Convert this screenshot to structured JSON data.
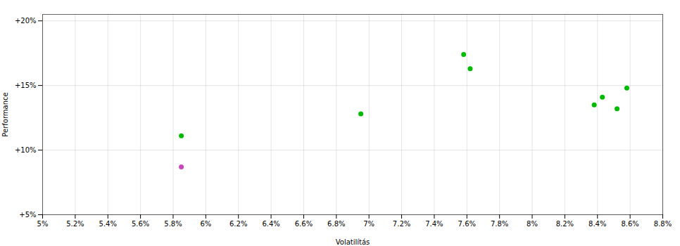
{
  "chart_data": {
    "type": "scatter",
    "xlabel": "Volatilítás",
    "ylabel": "Performance",
    "xlim": [
      0.05,
      0.088
    ],
    "ylim": [
      0.05,
      0.205
    ],
    "xticks": [
      {
        "value": 0.05,
        "label": "5%"
      },
      {
        "value": 0.052,
        "label": "5.2%"
      },
      {
        "value": 0.054,
        "label": "5.4%"
      },
      {
        "value": 0.056,
        "label": "5.6%"
      },
      {
        "value": 0.058,
        "label": "5.8%"
      },
      {
        "value": 0.06,
        "label": "6%"
      },
      {
        "value": 0.062,
        "label": "6.2%"
      },
      {
        "value": 0.064,
        "label": "6.4%"
      },
      {
        "value": 0.066,
        "label": "6.6%"
      },
      {
        "value": 0.068,
        "label": "6.8%"
      },
      {
        "value": 0.07,
        "label": "7%"
      },
      {
        "value": 0.072,
        "label": "7.2%"
      },
      {
        "value": 0.074,
        "label": "7.4%"
      },
      {
        "value": 0.076,
        "label": "7.6%"
      },
      {
        "value": 0.078,
        "label": "7.8%"
      },
      {
        "value": 0.08,
        "label": "8%"
      },
      {
        "value": 0.082,
        "label": "8.2%"
      },
      {
        "value": 0.084,
        "label": "8.4%"
      },
      {
        "value": 0.086,
        "label": "8.6%"
      },
      {
        "value": 0.088,
        "label": "8.8%"
      }
    ],
    "yticks": [
      {
        "value": 0.05,
        "label": "+5%"
      },
      {
        "value": 0.1,
        "label": "+10%"
      },
      {
        "value": 0.15,
        "label": "+15%"
      },
      {
        "value": 0.2,
        "label": "+20%"
      }
    ],
    "grid": true,
    "series": [
      {
        "color": "#00bb00",
        "x": [
          0.0585,
          0.0695,
          0.0758,
          0.0762,
          0.0838,
          0.0843,
          0.0852,
          0.0858
        ],
        "values": [
          0.111,
          0.128,
          0.174,
          0.163,
          0.135,
          0.141,
          0.132,
          0.148
        ]
      },
      {
        "color": "#cc44bb",
        "x": [
          0.0585
        ],
        "values": [
          0.087
        ]
      }
    ]
  }
}
